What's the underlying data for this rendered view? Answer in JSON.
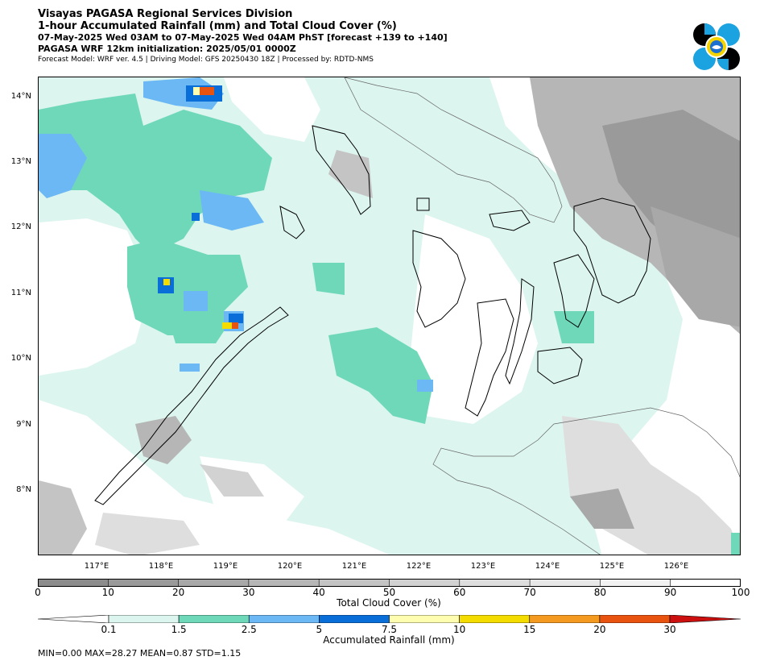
{
  "header": {
    "title": "Visayas PAGASA Regional Services Division",
    "subtitle": "1-hour Accumulated Rainfall (mm) and Total Cloud Cover (%)",
    "valid_time": "07-May-2025 Wed 03AM to 07-May-2025 Wed 04AM PhST [forecast +139 to +140]",
    "init": "PAGASA WRF 12km initialization: 2025/05/01 0000Z",
    "model_info": "Forecast Model: WRF ver. 4.5 | Driving Model: GFS 20250430 18Z | Processed by: RDTD-NMS"
  },
  "map": {
    "lat_labels": [
      "14°N",
      "13°N",
      "12°N",
      "11°N",
      "10°N",
      "9°N",
      "8°N"
    ],
    "lon_labels": [
      "117°E",
      "118°E",
      "119°E",
      "120°E",
      "121°E",
      "122°E",
      "123°E",
      "124°E",
      "125°E",
      "126°E"
    ]
  },
  "cloud_bar": {
    "label": "Total Cloud Cover (%)",
    "ticks": [
      "0",
      "10",
      "20",
      "30",
      "40",
      "50",
      "60",
      "70",
      "80",
      "90",
      "100"
    ],
    "colors": [
      "#8c8c8c",
      "#9a9a9a",
      "#a8a8a8",
      "#b6b6b6",
      "#c4c4c4",
      "#d2d2d2",
      "#dedede",
      "#e8e8e8",
      "#f2f2f2",
      "#ffffff"
    ]
  },
  "rain_bar": {
    "label": "Accumulated Rainfall (mm)",
    "ticks": [
      "0.1",
      "1.5",
      "2.5",
      "5",
      "7.5",
      "10",
      "15",
      "20",
      "30"
    ],
    "colors": [
      "#ffffff",
      "#dcf5ee",
      "#6fd8b9",
      "#6bb8f5",
      "#0a6ed8",
      "#fffdb0",
      "#f5dc00",
      "#f59a20",
      "#e85410",
      "#cc1010",
      "#8b0a0a"
    ]
  },
  "stats": "MIN=0.00   MAX=28.27   MEAN=0.87   STD=1.15"
}
